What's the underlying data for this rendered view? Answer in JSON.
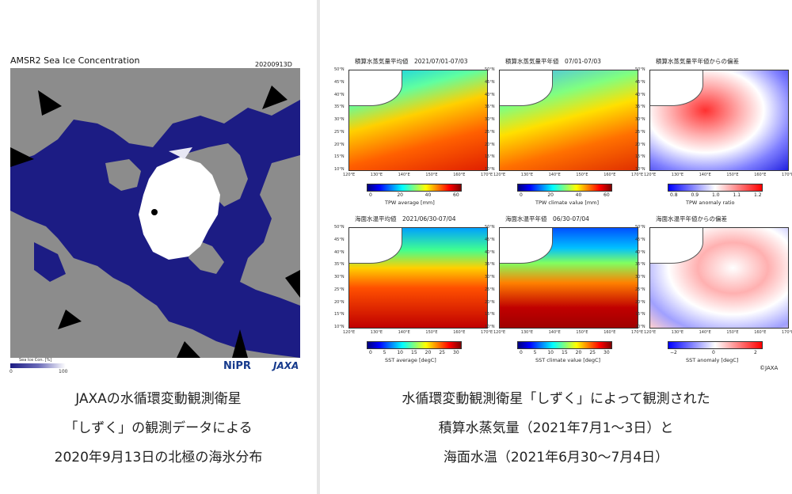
{
  "left": {
    "map_title": "AMSR2 Sea Ice Concentration",
    "map_date": "20200913D",
    "legend_label": "Sea Ice Con. [%]",
    "legend_ticks": [
      "0",
      "100"
    ],
    "logo_nipr": "NiPR",
    "logo_jaxa": "JAXA",
    "caption": [
      "JAXAの水循環変動観測衛星",
      "「しずく」の観測データによる",
      "2020年9月13日の北極の海氷分布"
    ],
    "colors": {
      "ocean": "#1c1c84",
      "land": "#8c8c8c",
      "ice": "#ffffff"
    }
  },
  "right": {
    "panels": [
      {
        "title": "積算水蒸気量平均値　2021/07/01-07/03",
        "cbar_label": "TPW average [mm]",
        "ticks": [
          "0",
          "20",
          "40",
          "60"
        ],
        "palette": "jet"
      },
      {
        "title": "積算水蒸気量平年値　07/01-07/03",
        "cbar_label": "TPW climate value [mm]",
        "ticks": [
          "0",
          "20",
          "40",
          "60"
        ],
        "palette": "jet"
      },
      {
        "title": "積算水蒸気量平年値からの偏差",
        "cbar_label": "TPW anomaly ratio",
        "ticks": [
          "0.8",
          "0.9",
          "1.0",
          "1.1",
          "1.2"
        ],
        "palette": "bwr"
      },
      {
        "title": "海面水温平均値　2021/06/30-07/04",
        "cbar_label": "SST average [degC]",
        "ticks": [
          "0",
          "5",
          "10",
          "15",
          "20",
          "25",
          "30"
        ],
        "palette": "jet"
      },
      {
        "title": "海面水温平年値　06/30-07/04",
        "cbar_label": "SST climate value [degC]",
        "ticks": [
          "0",
          "5",
          "10",
          "15",
          "20",
          "25",
          "30"
        ],
        "palette": "jet"
      },
      {
        "title": "海面水温平年値からの偏差",
        "cbar_label": "SST anomaly [degC]",
        "ticks": [
          "−2",
          "0",
          "2"
        ],
        "palette": "bwr"
      }
    ],
    "lat_labels": [
      "50°N",
      "45°N",
      "40°N",
      "35°N",
      "30°N",
      "25°N",
      "20°N",
      "15°N",
      "10°N"
    ],
    "lon_labels": [
      "120°E",
      "130°E",
      "140°E",
      "150°E",
      "160°E",
      "170°E"
    ],
    "copyright": "©JAXA",
    "caption": [
      "水循環変動観測衛星「しずく」によって観測された",
      "積算水蒸気量（2021年7月1～3日）と",
      "海面水温（2021年6月30～7月4日）"
    ]
  }
}
